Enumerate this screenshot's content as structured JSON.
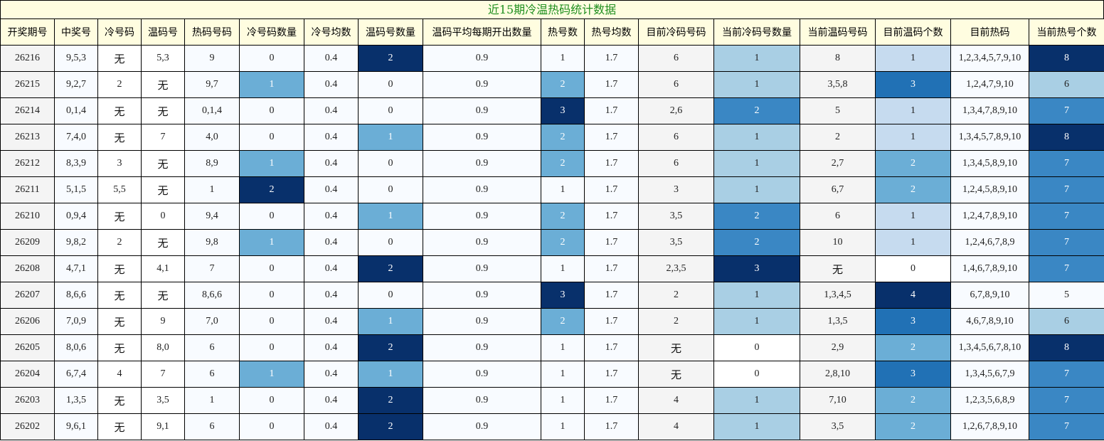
{
  "title": "近15期冷温热码统计数据",
  "headers": [
    "开奖期号",
    "中奖号",
    "冷号码",
    "温码号",
    "热码号码",
    "冷号码数量",
    "冷号均数",
    "温码号数量",
    "温码平均每期开出数量",
    "热号数",
    "热号均数",
    "目前冷码号码",
    "当前冷码号数量",
    "当前温码号码",
    "目前温码个数",
    "目前热码",
    "当前热号个数"
  ],
  "rows": [
    [
      "26216",
      "9,5,3",
      "无",
      "5,3",
      "9",
      "0",
      "0.4",
      "2",
      "0.9",
      "1",
      "1.7",
      "6",
      "1",
      "8",
      "1",
      "1,2,3,4,5,7,9,10",
      "8"
    ],
    [
      "26215",
      "9,2,7",
      "2",
      "无",
      "9,7",
      "1",
      "0.4",
      "0",
      "0.9",
      "2",
      "1.7",
      "6",
      "1",
      "3,5,8",
      "3",
      "1,2,4,7,9,10",
      "6"
    ],
    [
      "26214",
      "0,1,4",
      "无",
      "无",
      "0,1,4",
      "0",
      "0.4",
      "0",
      "0.9",
      "3",
      "1.7",
      "2,6",
      "2",
      "5",
      "1",
      "1,3,4,7,8,9,10",
      "7"
    ],
    [
      "26213",
      "7,4,0",
      "无",
      "7",
      "4,0",
      "0",
      "0.4",
      "1",
      "0.9",
      "2",
      "1.7",
      "6",
      "1",
      "2",
      "1",
      "1,3,4,5,7,8,9,10",
      "8"
    ],
    [
      "26212",
      "8,3,9",
      "3",
      "无",
      "8,9",
      "1",
      "0.4",
      "0",
      "0.9",
      "2",
      "1.7",
      "6",
      "1",
      "2,7",
      "2",
      "1,3,4,5,8,9,10",
      "7"
    ],
    [
      "26211",
      "5,1,5",
      "5,5",
      "无",
      "1",
      "2",
      "0.4",
      "0",
      "0.9",
      "1",
      "1.7",
      "3",
      "1",
      "6,7",
      "2",
      "1,2,4,5,8,9,10",
      "7"
    ],
    [
      "26210",
      "0,9,4",
      "无",
      "0",
      "9,4",
      "0",
      "0.4",
      "1",
      "0.9",
      "2",
      "1.7",
      "3,5",
      "2",
      "6",
      "1",
      "1,2,4,7,8,9,10",
      "7"
    ],
    [
      "26209",
      "9,8,2",
      "2",
      "无",
      "9,8",
      "1",
      "0.4",
      "0",
      "0.9",
      "2",
      "1.7",
      "3,5",
      "2",
      "10",
      "1",
      "1,2,4,6,7,8,9",
      "7"
    ],
    [
      "26208",
      "4,7,1",
      "无",
      "4,1",
      "7",
      "0",
      "0.4",
      "2",
      "0.9",
      "1",
      "1.7",
      "2,3,5",
      "3",
      "无",
      "0",
      "1,4,6,7,8,9,10",
      "7"
    ],
    [
      "26207",
      "8,6,6",
      "无",
      "无",
      "8,6,6",
      "0",
      "0.4",
      "0",
      "0.9",
      "3",
      "1.7",
      "2",
      "1",
      "1,3,4,5",
      "4",
      "6,7,8,9,10",
      "5"
    ],
    [
      "26206",
      "7,0,9",
      "无",
      "9",
      "7,0",
      "0",
      "0.4",
      "1",
      "0.9",
      "2",
      "1.7",
      "2",
      "1",
      "1,3,5",
      "3",
      "4,6,7,8,9,10",
      "6"
    ],
    [
      "26205",
      "8,0,6",
      "无",
      "8,0",
      "6",
      "0",
      "0.4",
      "2",
      "0.9",
      "1",
      "1.7",
      "无",
      "0",
      "2,9",
      "2",
      "1,3,4,5,6,7,8,10",
      "8"
    ],
    [
      "26204",
      "6,7,4",
      "4",
      "7",
      "6",
      "1",
      "0.4",
      "1",
      "0.9",
      "1",
      "1.7",
      "无",
      "0",
      "2,8,10",
      "3",
      "1,3,4,5,6,7,9",
      "7"
    ],
    [
      "26203",
      "1,3,5",
      "无",
      "3,5",
      "1",
      "0",
      "0.4",
      "2",
      "0.9",
      "1",
      "1.7",
      "4",
      "1",
      "7,10",
      "2",
      "1,2,3,5,6,8,9",
      "7"
    ],
    [
      "26202",
      "9,6,1",
      "无",
      "9,1",
      "6",
      "0",
      "0.4",
      "2",
      "0.9",
      "1",
      "1.7",
      "4",
      "1",
      "3,5",
      "2",
      "1,2,6,7,8,9,10",
      "7"
    ]
  ],
  "colors": {
    "title_text": "#1f8f1f",
    "header_bg": "#fffde0",
    "heat": {
      "c5": {
        "0": "#f8fbff",
        "1": "#6baed6",
        "2": "#08306b"
      },
      "c7": {
        "0": "#f8fbff",
        "1": "#6baed6",
        "2": "#08306b"
      },
      "c9": {
        "1": "#f8fbff",
        "2": "#6baed6",
        "3": "#08306b"
      },
      "c12": {
        "0": "#ffffff",
        "1": "#a9cfe4",
        "2": "#3a87c4",
        "3": "#08306b"
      },
      "c14": {
        "0": "#ffffff",
        "1": "#c6dbef",
        "2": "#6baed6",
        "3": "#2171b5",
        "4": "#08306b"
      },
      "c16": {
        "5": "#f8fbff",
        "6": "#a9cfe4",
        "7": "#3a87c4",
        "8": "#08306b"
      }
    }
  }
}
